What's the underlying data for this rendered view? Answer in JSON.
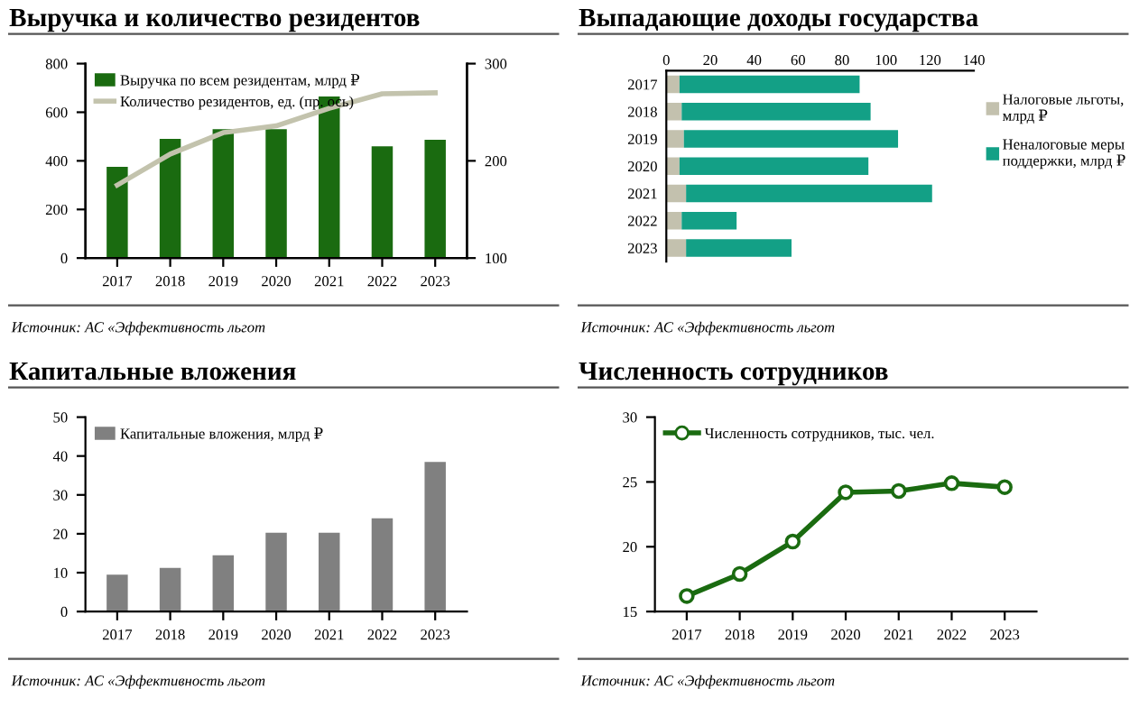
{
  "chart_data": [
    {
      "type": "bar",
      "title": "Выручка и количество резидентов",
      "categories": [
        "2017",
        "2018",
        "2019",
        "2020",
        "2021",
        "2022",
        "2023"
      ],
      "series": [
        {
          "name": "Выручка по всем резидентам, млрд ₽",
          "color": "#1a6b10",
          "values": [
            375,
            490,
            530,
            530,
            665,
            460,
            487
          ]
        },
        {
          "name": "Количество резидентов, ед. (пр. ось)",
          "type": "line",
          "axis": "y2",
          "color": "#c3c3ad",
          "values": [
            175,
            207,
            229,
            236,
            254,
            269,
            270
          ]
        }
      ],
      "ylim": [
        0,
        800
      ],
      "yticks": [
        0,
        200,
        400,
        600,
        800
      ],
      "y2lim": [
        100,
        300
      ],
      "y2ticks": [
        100,
        200,
        300
      ],
      "legend": "top left",
      "annotations": [
        "Источник: АС «Эффективность льгот"
      ]
    },
    {
      "type": "bar",
      "title": "Выпадающие доходы государства",
      "orientation": "horizontal",
      "stacked": true,
      "categories": [
        "2017",
        "2018",
        "2019",
        "2020",
        "2021",
        "2022",
        "2023"
      ],
      "series": [
        {
          "name": "Налоговые льготы, млрд ₽",
          "color": "#c3c1ae",
          "values": [
            6,
            7,
            8,
            6,
            9,
            7,
            9
          ]
        },
        {
          "name": "Неналоговые меры поддержки, млрд ₽",
          "color": "#13a086",
          "values": [
            82,
            86,
            97.5,
            86,
            112,
            25,
            48
          ]
        }
      ],
      "xlim": [
        0,
        140
      ],
      "xticks": [
        0,
        20,
        40,
        60,
        80,
        100,
        120,
        140
      ],
      "legend": "right",
      "annotations": [
        "Источник: АС «Эффективность льгот"
      ]
    },
    {
      "type": "bar",
      "title": "Капитальные вложения",
      "categories": [
        "2017",
        "2018",
        "2019",
        "2020",
        "2021",
        "2022",
        "2023"
      ],
      "series": [
        {
          "name": "Капитальные вложения, млрд ₽",
          "color": "#808080",
          "values": [
            9.5,
            11.2,
            14.5,
            20.3,
            20.3,
            24,
            38.5
          ]
        }
      ],
      "ylim": [
        0,
        50
      ],
      "yticks": [
        0,
        10,
        20,
        30,
        40,
        50
      ],
      "legend": "top left",
      "annotations": [
        "Источник: АС «Эффективность льгот"
      ]
    },
    {
      "type": "line",
      "title": "Численность сотрудников",
      "categories": [
        "2017",
        "2018",
        "2019",
        "2020",
        "2021",
        "2022",
        "2023"
      ],
      "series": [
        {
          "name": "Численность сотрудников, тыс. чел.",
          "color": "#1a6b10",
          "values": [
            16.2,
            17.9,
            20.4,
            24.2,
            24.3,
            24.9,
            24.6
          ]
        }
      ],
      "marker": "circle",
      "ylim": [
        15,
        30
      ],
      "yticks": [
        15,
        20,
        25,
        30
      ],
      "legend": "top left",
      "annotations": [
        "Источник: АС «Эффективность льгот"
      ]
    }
  ]
}
